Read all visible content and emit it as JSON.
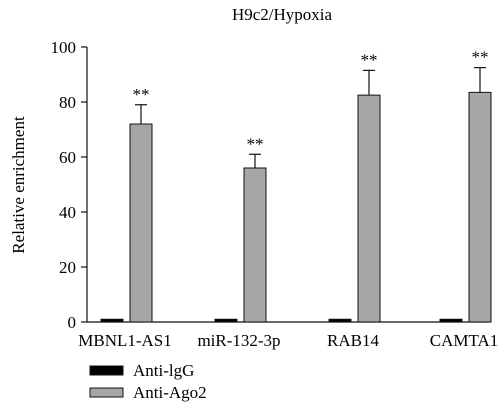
{
  "chart_data": {
    "type": "bar",
    "title": "H9c2/Hypoxia",
    "xlabel": "",
    "ylabel": "Relative enrichment",
    "ylim": [
      0,
      100
    ],
    "yticks": [
      0,
      20,
      40,
      60,
      80,
      100
    ],
    "categories": [
      "MBNL1-AS1",
      "miR-132-3p",
      "RAB14",
      "CAMTA1"
    ],
    "series": [
      {
        "name": "Anti-lgG",
        "color": "#000000",
        "values": [
          1,
          1,
          1,
          1
        ],
        "errors": [
          0,
          0,
          0,
          0
        ]
      },
      {
        "name": "Anti-Ago2",
        "color": "#a6a6a6",
        "values": [
          72,
          56,
          82.5,
          83.5
        ],
        "errors": [
          7,
          5,
          9,
          9
        ]
      }
    ],
    "annotations": [
      "**",
      "**",
      "**",
      "**"
    ],
    "legend_position": "bottom-left"
  }
}
